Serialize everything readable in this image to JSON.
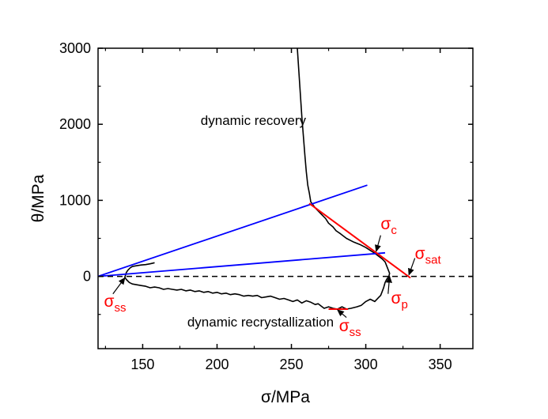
{
  "chart_data": {
    "type": "line",
    "xlabel": "σ/MPa",
    "ylabel": "θ/MPa",
    "xlim": [
      120,
      372
    ],
    "ylim": [
      -950,
      3000
    ],
    "xticks": [
      150,
      200,
      250,
      300,
      350
    ],
    "yticks": [
      0,
      1000,
      2000,
      3000
    ],
    "grid": false,
    "region_labels": [
      {
        "text": "dynamic recovery",
        "x": 189,
        "y": 1990
      },
      {
        "text": "dynamic recrystallization",
        "x": 180,
        "y": -660
      }
    ],
    "series": [
      {
        "style": "black-curve",
        "points": [
          [
            254,
            3000
          ],
          [
            255,
            2700
          ],
          [
            256,
            2400
          ],
          [
            257,
            2100
          ],
          [
            258,
            1850
          ],
          [
            259,
            1600
          ],
          [
            260,
            1380
          ],
          [
            261,
            1200
          ],
          [
            262,
            1100
          ],
          [
            263,
            980
          ],
          [
            266,
            900
          ],
          [
            270,
            820
          ],
          [
            273,
            760
          ],
          [
            275,
            700
          ],
          [
            278,
            650
          ],
          [
            280,
            600
          ],
          [
            283,
            560
          ],
          [
            287,
            500
          ],
          [
            292,
            450
          ],
          [
            296,
            420
          ],
          [
            300,
            380
          ],
          [
            304,
            330
          ],
          [
            307,
            290
          ],
          [
            309,
            260
          ],
          [
            311,
            230
          ],
          [
            313,
            190
          ],
          [
            314,
            140
          ],
          [
            315,
            90
          ],
          [
            316,
            40
          ],
          [
            315.5,
            0
          ],
          [
            314,
            -40
          ],
          [
            313,
            -80
          ],
          [
            312,
            -150
          ],
          [
            311,
            -200
          ],
          [
            310,
            -250
          ],
          [
            309,
            -270
          ],
          [
            306,
            -330
          ],
          [
            303,
            -300
          ],
          [
            300,
            -330
          ],
          [
            297,
            -380
          ],
          [
            294,
            -400
          ],
          [
            290,
            -420
          ],
          [
            287,
            -430
          ],
          [
            284,
            -400
          ],
          [
            281,
            -430
          ],
          [
            278,
            -420
          ],
          [
            275,
            -400
          ],
          [
            272,
            -420
          ],
          [
            270,
            -390
          ],
          [
            268,
            -360
          ],
          [
            266,
            -370
          ],
          [
            263,
            -340
          ],
          [
            260,
            -320
          ],
          [
            257,
            -350
          ],
          [
            254,
            -310
          ],
          [
            251,
            -330
          ],
          [
            248,
            -310
          ],
          [
            245,
            -290
          ],
          [
            242,
            -300
          ],
          [
            239,
            -280
          ],
          [
            236,
            -260
          ],
          [
            233,
            -270
          ],
          [
            230,
            -280
          ],
          [
            227,
            -250
          ],
          [
            224,
            -260
          ],
          [
            221,
            -250
          ],
          [
            218,
            -260
          ],
          [
            215,
            -240
          ],
          [
            212,
            -230
          ],
          [
            209,
            -240
          ],
          [
            206,
            -220
          ],
          [
            203,
            -230
          ],
          [
            200,
            -210
          ],
          [
            197,
            -220
          ],
          [
            194,
            -200
          ],
          [
            191,
            -210
          ],
          [
            188,
            -190
          ],
          [
            185,
            -200
          ],
          [
            182,
            -180
          ],
          [
            179,
            -190
          ],
          [
            176,
            -170
          ],
          [
            173,
            -180
          ],
          [
            170,
            -170
          ],
          [
            167,
            -160
          ],
          [
            164,
            -170
          ],
          [
            161,
            -150
          ],
          [
            158,
            -140
          ],
          [
            155,
            -150
          ],
          [
            152,
            -130
          ],
          [
            149,
            -120
          ],
          [
            146,
            -110
          ],
          [
            143,
            -100
          ],
          [
            141,
            -80
          ],
          [
            139,
            -40
          ],
          [
            138,
            -10
          ],
          [
            138.5,
            20
          ],
          [
            139,
            50
          ],
          [
            140,
            80
          ],
          [
            141.5,
            110
          ],
          [
            143,
            130
          ],
          [
            146,
            140
          ],
          [
            149,
            150
          ],
          [
            152,
            155
          ],
          [
            155,
            165
          ],
          [
            157,
            175
          ],
          [
            158,
            180
          ]
        ]
      },
      {
        "style": "blue-line",
        "points": [
          [
            120,
            0
          ],
          [
            301,
            1200
          ]
        ]
      },
      {
        "style": "blue-line",
        "points": [
          [
            120,
            0
          ],
          [
            313,
            310
          ]
        ]
      },
      {
        "style": "red-line",
        "points": [
          [
            262,
            960
          ],
          [
            330,
            -20
          ]
        ]
      },
      {
        "style": "red-line",
        "points": [
          [
            275,
            -430
          ],
          [
            288,
            -430
          ]
        ]
      },
      {
        "style": "dashed-zero",
        "points": [
          [
            120,
            0
          ],
          [
            372,
            0
          ]
        ]
      }
    ],
    "annotations": [
      {
        "symbol": "σ",
        "sub": "c",
        "x": 310,
        "y": 620,
        "arrow_from": [
          310,
          540
        ],
        "arrow_to": [
          307,
          330
        ]
      },
      {
        "symbol": "σ",
        "sub": "sat",
        "x": 333,
        "y": 230,
        "arrow_from": [
          333,
          240
        ],
        "arrow_to": [
          329,
          20
        ]
      },
      {
        "symbol": "σ",
        "sub": "p",
        "x": 317,
        "y": -360,
        "arrow_from": [
          315,
          -230
        ],
        "arrow_to": [
          316,
          0
        ]
      },
      {
        "symbol": "σ",
        "sub": "ss",
        "x": 124,
        "y": -400,
        "arrow_from": [
          130,
          -230
        ],
        "arrow_to": [
          138,
          -20
        ]
      },
      {
        "symbol": "σ",
        "sub": "ss",
        "x": 282,
        "y": -720,
        "arrow_from": [
          287,
          -540
        ],
        "arrow_to": [
          281,
          -440
        ]
      }
    ]
  }
}
